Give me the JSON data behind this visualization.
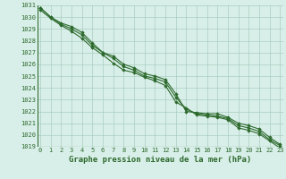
{
  "title": "Graphe pression niveau de la mer (hPa)",
  "x": [
    0,
    1,
    2,
    3,
    4,
    5,
    6,
    7,
    8,
    9,
    10,
    11,
    12,
    13,
    14,
    15,
    16,
    17,
    18,
    19,
    20,
    21,
    22,
    23
  ],
  "line1": [
    1030.8,
    1030.0,
    1029.5,
    1029.2,
    1028.7,
    1027.8,
    1027.0,
    1026.7,
    1026.0,
    1025.7,
    1025.2,
    1025.0,
    1024.7,
    1023.5,
    1022.0,
    1021.9,
    1021.8,
    1021.8,
    1021.5,
    1021.0,
    1020.8,
    1020.5,
    1019.8,
    1019.2
  ],
  "line2": [
    1030.8,
    1030.0,
    1029.4,
    1029.0,
    1028.5,
    1027.6,
    1027.0,
    1026.5,
    1025.8,
    1025.5,
    1025.0,
    1024.8,
    1024.5,
    1023.2,
    1022.2,
    1021.8,
    1021.7,
    1021.6,
    1021.4,
    1020.8,
    1020.6,
    1020.3,
    1019.6,
    1019.1
  ],
  "line3": [
    1030.6,
    1029.9,
    1029.3,
    1028.8,
    1028.2,
    1027.4,
    1026.8,
    1026.1,
    1025.5,
    1025.3,
    1024.9,
    1024.6,
    1024.2,
    1022.8,
    1022.3,
    1021.7,
    1021.6,
    1021.5,
    1021.3,
    1020.6,
    1020.4,
    1020.1,
    1019.5,
    1018.9
  ],
  "line_color": "#2d6a2d",
  "bg_color": "#d8eee8",
  "grid_color": "#a0c8b8",
  "ylim": [
    1019,
    1031
  ],
  "xlim": [
    -0.3,
    23.3
  ],
  "yticks": [
    1019,
    1020,
    1021,
    1022,
    1023,
    1024,
    1025,
    1026,
    1027,
    1028,
    1029,
    1030,
    1031
  ],
  "xticks": [
    0,
    1,
    2,
    3,
    4,
    5,
    6,
    7,
    8,
    9,
    10,
    11,
    12,
    13,
    14,
    15,
    16,
    17,
    18,
    19,
    20,
    21,
    22,
    23
  ],
  "marker": "D",
  "marker_size": 1.8,
  "line_width": 0.8,
  "title_fontsize": 6.5,
  "tick_fontsize": 5.0
}
